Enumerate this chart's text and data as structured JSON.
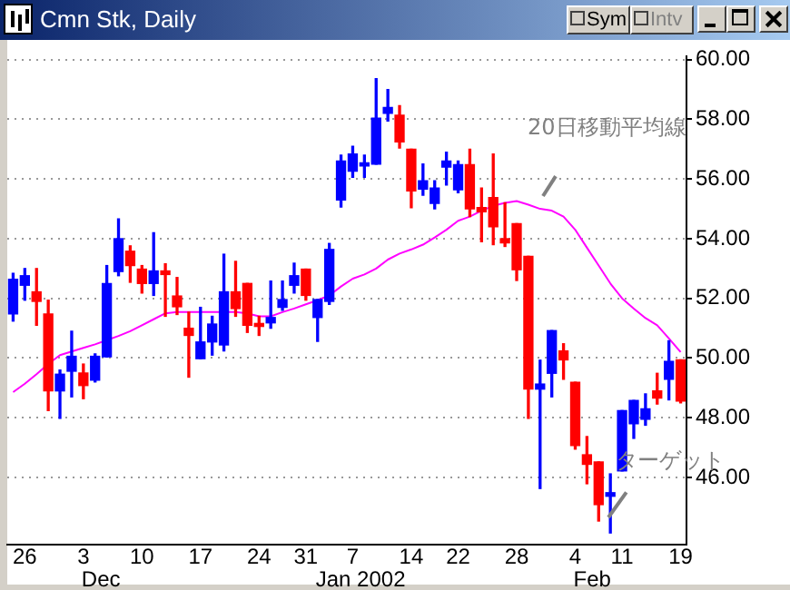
{
  "chart_data": {
    "type": "candlestick",
    "title": "Cmn Stk, Daily",
    "categories": [
      null,
      "26",
      null,
      null,
      null,
      null,
      "3",
      null,
      null,
      null,
      null,
      "10",
      null,
      null,
      null,
      null,
      "17",
      null,
      null,
      null,
      null,
      "24",
      null,
      null,
      null,
      "31",
      null,
      null,
      null,
      "7",
      null,
      null,
      null,
      null,
      "14",
      null,
      null,
      null,
      "22",
      null,
      null,
      null,
      null,
      "28",
      null,
      null,
      null,
      null,
      "4",
      null,
      null,
      null,
      "11",
      null,
      null,
      null,
      null,
      "19"
    ],
    "ohlc": [
      [
        51.48,
        52.84,
        51.24,
        52.64
      ],
      [
        52.44,
        53.0,
        51.94,
        52.76
      ],
      [
        52.22,
        53.0,
        51.1,
        51.9
      ],
      [
        51.48,
        51.94,
        48.24,
        48.9
      ],
      [
        48.9,
        49.6,
        47.98,
        49.46
      ],
      [
        49.56,
        50.9,
        48.7,
        50.06
      ],
      [
        49.5,
        49.8,
        48.64,
        49.08
      ],
      [
        49.26,
        50.14,
        49.2,
        50.06
      ],
      [
        50.04,
        53.1,
        50.04,
        52.5
      ],
      [
        52.9,
        54.66,
        52.76,
        54.0
      ],
      [
        53.58,
        53.76,
        52.54,
        53.1
      ],
      [
        52.98,
        53.1,
        52.18,
        52.5
      ],
      [
        52.5,
        54.2,
        52.1,
        52.92
      ],
      [
        52.92,
        53.16,
        51.4,
        52.8
      ],
      [
        52.08,
        52.7,
        51.46,
        51.72
      ],
      [
        51.0,
        51.54,
        49.36,
        50.76
      ],
      [
        49.98,
        51.7,
        49.98,
        50.54
      ],
      [
        50.54,
        51.4,
        50.1,
        51.14
      ],
      [
        50.44,
        53.48,
        50.24,
        52.22
      ],
      [
        52.22,
        53.24,
        51.4,
        51.66
      ],
      [
        52.5,
        52.5,
        50.86,
        51.1
      ],
      [
        51.16,
        51.4,
        50.76,
        51.06
      ],
      [
        51.18,
        52.58,
        51.0,
        51.36
      ],
      [
        51.7,
        52.58,
        51.6,
        51.96
      ],
      [
        52.44,
        53.18,
        52.18,
        52.76
      ],
      [
        52.98,
        52.98,
        51.94,
        52.1
      ],
      [
        51.36,
        51.96,
        50.56,
        51.96
      ],
      [
        51.9,
        53.84,
        51.8,
        53.64
      ],
      [
        55.3,
        56.8,
        55.06,
        56.6
      ],
      [
        56.26,
        57.1,
        56.06,
        56.84
      ],
      [
        56.44,
        56.8,
        56.06,
        56.54
      ],
      [
        56.5,
        59.36,
        56.5,
        58.04
      ],
      [
        58.2,
        59.0,
        57.94,
        58.4
      ],
      [
        58.14,
        58.46,
        57.04,
        57.24
      ],
      [
        57.0,
        57.0,
        55.04,
        55.6
      ],
      [
        55.66,
        56.5,
        55.46,
        55.94
      ],
      [
        55.18,
        55.94,
        55.0,
        55.7
      ],
      [
        56.4,
        56.9,
        55.8,
        56.6
      ],
      [
        55.64,
        56.6,
        55.54,
        56.48
      ],
      [
        56.48,
        57.0,
        54.74,
        55.0
      ],
      [
        55.04,
        55.7,
        53.9,
        54.9
      ],
      [
        55.38,
        56.84,
        53.8,
        54.4
      ],
      [
        54.0,
        55.2,
        53.74,
        53.86
      ],
      [
        54.5,
        54.5,
        52.6,
        52.96
      ],
      [
        53.41,
        53.41,
        47.98,
        48.96
      ],
      [
        48.96,
        49.93,
        45.63,
        49.13
      ],
      [
        49.49,
        50.92,
        48.7,
        50.92
      ],
      [
        50.24,
        50.48,
        49.29,
        49.94
      ],
      [
        49.19,
        49.19,
        46.95,
        47.07
      ],
      [
        46.76,
        47.37,
        45.79,
        46.44
      ],
      [
        46.52,
        46.52,
        44.54,
        45.09
      ],
      [
        45.37,
        46.12,
        44.14,
        45.49
      ],
      [
        46.22,
        48.24,
        46.22,
        48.24
      ],
      [
        47.8,
        48.58,
        47.31,
        48.58
      ],
      [
        47.95,
        48.8,
        47.75,
        48.3
      ],
      [
        48.9,
        49.49,
        48.46,
        48.66
      ],
      [
        49.29,
        50.58,
        48.6,
        49.89
      ],
      [
        49.94,
        49.94,
        48.5,
        48.56
      ]
    ],
    "colors": [
      "#0000ff",
      "#0000ff",
      "#ff0000",
      "#ff0000",
      "#0000ff",
      "#0000ff",
      "#ff0000",
      "#0000ff",
      "#0000ff",
      "#0000ff",
      "#ff0000",
      "#ff0000",
      "#0000ff",
      "#ff0000",
      "#ff0000",
      "#ff0000",
      "#0000ff",
      "#0000ff",
      "#0000ff",
      "#ff0000",
      "#ff0000",
      "#ff0000",
      "#0000ff",
      "#0000ff",
      "#0000ff",
      "#ff0000",
      "#0000ff",
      "#0000ff",
      "#0000ff",
      "#0000ff",
      "#0000ff",
      "#0000ff",
      "#0000ff",
      "#ff0000",
      "#ff0000",
      "#0000ff",
      "#0000ff",
      "#0000ff",
      "#0000ff",
      "#ff0000",
      "#ff0000",
      "#ff0000",
      "#ff0000",
      "#ff0000",
      "#ff0000",
      "#0000ff",
      "#0000ff",
      "#ff0000",
      "#ff0000",
      "#ff0000",
      "#ff0000",
      "#0000ff",
      "#0000ff",
      "#0000ff",
      "#0000ff",
      "#ff0000",
      "#0000ff",
      "#ff0000"
    ],
    "series": [
      {
        "name": "20日移動平均線",
        "type": "line",
        "color": "#ff00ff",
        "values": [
          48.86,
          49.14,
          49.46,
          49.8,
          50.1,
          50.22,
          50.34,
          50.46,
          50.6,
          50.74,
          50.9,
          51.1,
          51.3,
          51.5,
          51.54,
          51.54,
          51.54,
          51.54,
          51.54,
          51.54,
          51.5,
          51.4,
          51.4,
          51.54,
          51.66,
          51.8,
          51.94,
          52.1,
          52.4,
          52.66,
          52.8,
          53.0,
          53.3,
          53.5,
          53.64,
          53.8,
          54.04,
          54.3,
          54.6,
          54.74,
          54.94,
          55.1,
          55.2,
          55.26,
          55.14,
          55.0,
          54.94,
          54.74,
          54.3,
          53.7,
          53.1,
          52.5,
          52.0,
          51.66,
          51.34,
          51.1,
          50.66,
          50.2
        ]
      }
    ],
    "ylim": [
      43.75,
      60.1
    ],
    "yticks": [
      {
        "value": 46,
        "label": "46.00"
      },
      {
        "value": 48,
        "label": "48.00"
      },
      {
        "value": 50,
        "label": "50.00"
      },
      {
        "value": 52,
        "label": "52.00"
      },
      {
        "value": 54,
        "label": "54.00"
      },
      {
        "value": 56,
        "label": "56.00"
      },
      {
        "value": 58,
        "label": "58.00"
      },
      {
        "value": 60,
        "label": "60.00"
      }
    ],
    "grid": "y",
    "marker": "none",
    "line_style": "solid",
    "annotations": [
      "Dec",
      "Jan 2002",
      "Feb",
      "ターゲット",
      "Sym",
      "Intv"
    ]
  }
}
